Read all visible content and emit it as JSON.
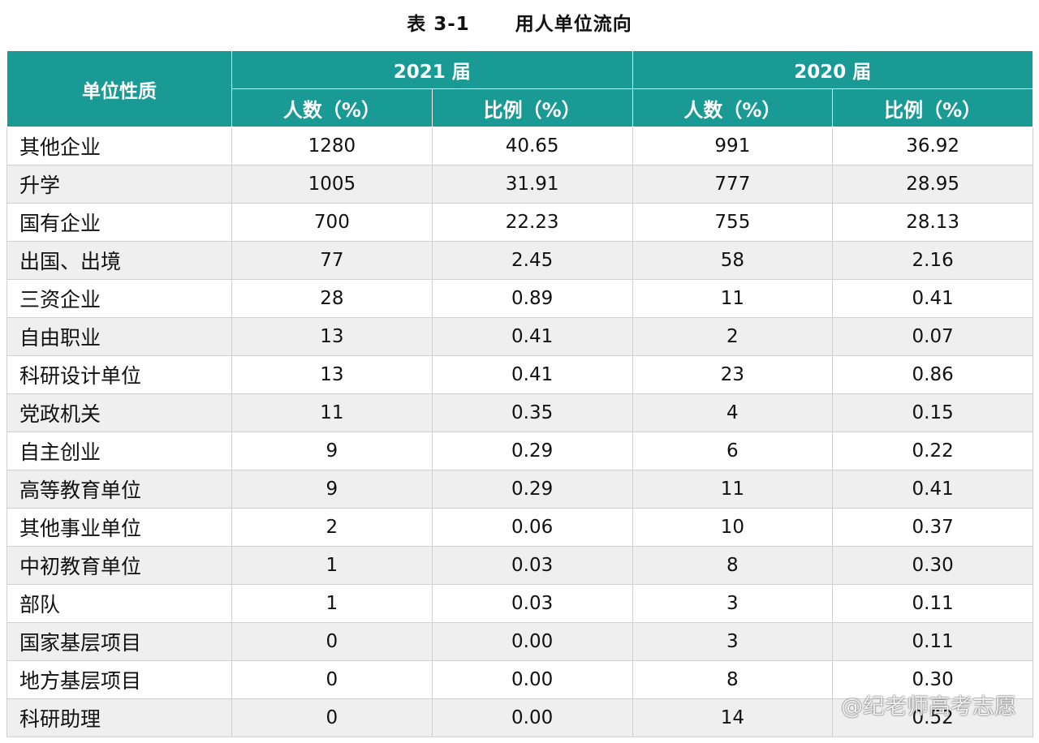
{
  "caption": {
    "number": "表 3-1",
    "title": "用人单位流向"
  },
  "header": {
    "corner": "单位性质",
    "groups": [
      "2021 届",
      "2020 届"
    ],
    "sub": [
      "人数（%）",
      "比例（%）",
      "人数（%）",
      "比例（%）"
    ]
  },
  "rows": [
    [
      "其他企业",
      "1280",
      "40.65",
      "991",
      "36.92"
    ],
    [
      "升学",
      "1005",
      "31.91",
      "777",
      "28.95"
    ],
    [
      "国有企业",
      "700",
      "22.23",
      "755",
      "28.13"
    ],
    [
      "出国、出境",
      "77",
      "2.45",
      "58",
      "2.16"
    ],
    [
      "三资企业",
      "28",
      "0.89",
      "11",
      "0.41"
    ],
    [
      "自由职业",
      "13",
      "0.41",
      "2",
      "0.07"
    ],
    [
      "科研设计单位",
      "13",
      "0.41",
      "23",
      "0.86"
    ],
    [
      "党政机关",
      "11",
      "0.35",
      "4",
      "0.15"
    ],
    [
      "自主创业",
      "9",
      "0.29",
      "6",
      "0.22"
    ],
    [
      "高等教育单位",
      "9",
      "0.29",
      "11",
      "0.41"
    ],
    [
      "其他事业单位",
      "2",
      "0.06",
      "10",
      "0.37"
    ],
    [
      "中初教育单位",
      "1",
      "0.03",
      "8",
      "0.30"
    ],
    [
      "部队",
      "1",
      "0.03",
      "3",
      "0.11"
    ],
    [
      "国家基层项目",
      "0",
      "0.00",
      "3",
      "0.11"
    ],
    [
      "地方基层项目",
      "0",
      "0.00",
      "8",
      "0.30"
    ],
    [
      "科研助理",
      "0",
      "0.00",
      "14",
      "0.52"
    ]
  ],
  "watermark": "@纪老师高考志愿",
  "colors": {
    "header_bg": "#1a9a95",
    "row_alt": "#efefef"
  }
}
